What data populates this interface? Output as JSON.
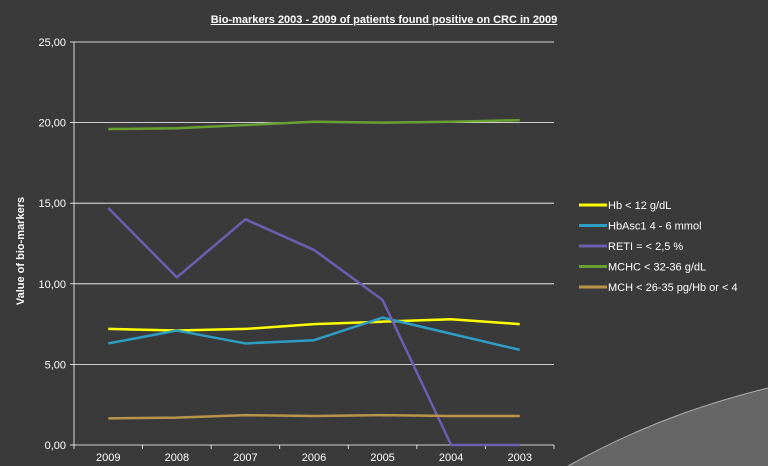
{
  "chart_data": {
    "type": "line",
    "title": "Bio-markers 2003 - 2009 of patients found positive on CRC in 2009",
    "ylabel": "Value of bio-markers",
    "xlabel": "",
    "categories": [
      "2009",
      "2008",
      "2007",
      "2006",
      "2005",
      "2004",
      "2003"
    ],
    "ylim": [
      0,
      25
    ],
    "yticks": [
      "0,00",
      "5,00",
      "10,00",
      "15,00",
      "20,00",
      "25,00"
    ],
    "ytick_values": [
      0,
      5,
      10,
      15,
      20,
      25
    ],
    "grid": true,
    "legend_position": "right",
    "series": [
      {
        "name": "Hb < 12 g/dL",
        "color": "#ffff00",
        "values": [
          7.2,
          7.1,
          7.2,
          7.5,
          7.65,
          7.8,
          7.5
        ]
      },
      {
        "name": "HbAsc1 4 - 6 mmol",
        "color": "#2e9ec4",
        "values": [
          6.3,
          7.1,
          6.3,
          6.5,
          7.9,
          6.9,
          5.9
        ]
      },
      {
        "name": "RETI = < 2,5 %",
        "color": "#6a5fb0",
        "values": [
          14.7,
          10.4,
          14.0,
          12.1,
          9.0,
          0.0,
          0.0
        ]
      },
      {
        "name": "MCHC < 32-36 g/dL",
        "color": "#6aa032",
        "values": [
          19.6,
          19.65,
          19.85,
          20.05,
          20.0,
          20.05,
          20.15
        ]
      },
      {
        "name": "MCH < 26-35 pg/Hb or < 4",
        "color": "#b8954a",
        "values": [
          1.65,
          1.7,
          1.85,
          1.8,
          1.85,
          1.8,
          1.8
        ]
      }
    ]
  }
}
